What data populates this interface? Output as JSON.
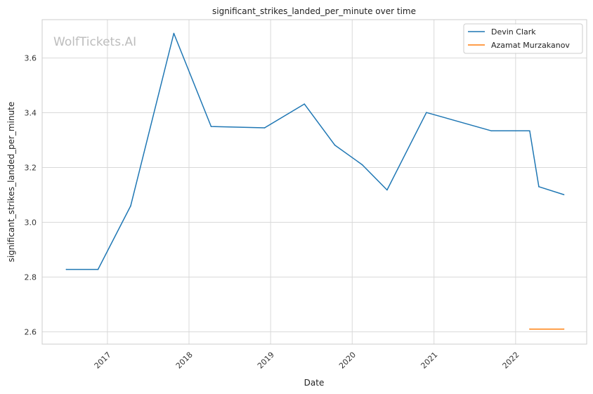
{
  "chart_data": {
    "type": "line",
    "title": "significant_strikes_landed_per_minute over time",
    "xlabel": "Date",
    "ylabel": "significant_strikes_landed_per_minute",
    "watermark": "WolfTickets.AI",
    "x_range": [
      "2016-03-15",
      "2022-11-15"
    ],
    "ylim": [
      2.555,
      3.74
    ],
    "x_ticks": [
      {
        "date": "2017-01-01",
        "label": "2017"
      },
      {
        "date": "2018-01-01",
        "label": "2018"
      },
      {
        "date": "2019-01-01",
        "label": "2019"
      },
      {
        "date": "2020-01-01",
        "label": "2020"
      },
      {
        "date": "2021-01-01",
        "label": "2021"
      },
      {
        "date": "2022-01-01",
        "label": "2022"
      }
    ],
    "y_ticks": [
      2.6,
      2.8,
      3.0,
      3.2,
      3.4,
      3.6
    ],
    "y_tick_labels": [
      "2.6",
      "2.8",
      "3.0",
      "3.2",
      "3.4",
      "3.6"
    ],
    "grid": true,
    "legend_position": "top-right",
    "series": [
      {
        "name": "Devin Clark",
        "color": "#1f77b4",
        "points": [
          {
            "x": "2016-07-01",
            "y": 2.828
          },
          {
            "x": "2016-11-20",
            "y": 2.828
          },
          {
            "x": "2017-04-15",
            "y": 3.06
          },
          {
            "x": "2017-10-25",
            "y": 3.69
          },
          {
            "x": "2018-04-10",
            "y": 3.35
          },
          {
            "x": "2018-12-05",
            "y": 3.345
          },
          {
            "x": "2019-06-01",
            "y": 3.432
          },
          {
            "x": "2019-10-15",
            "y": 3.282
          },
          {
            "x": "2020-02-15",
            "y": 3.21
          },
          {
            "x": "2020-06-05",
            "y": 3.118
          },
          {
            "x": "2020-11-28",
            "y": 3.401
          },
          {
            "x": "2021-09-15",
            "y": 3.334
          },
          {
            "x": "2022-03-05",
            "y": 3.334
          },
          {
            "x": "2022-04-15",
            "y": 3.13
          },
          {
            "x": "2022-08-05",
            "y": 3.101
          }
        ]
      },
      {
        "name": "Azamat Murzakanov",
        "color": "#ff7f0e",
        "points": [
          {
            "x": "2022-03-05",
            "y": 2.61
          },
          {
            "x": "2022-08-05",
            "y": 2.61
          }
        ]
      }
    ]
  }
}
